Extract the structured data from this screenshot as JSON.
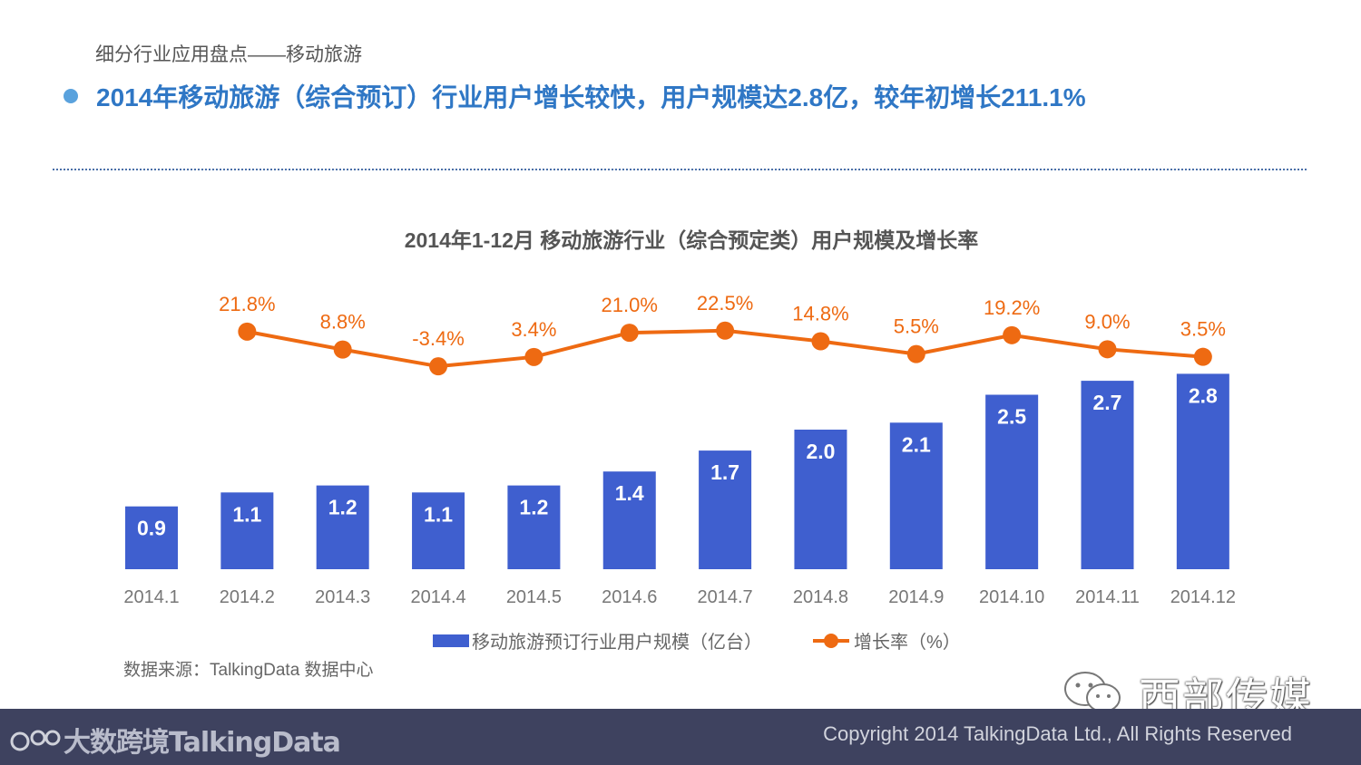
{
  "header": {
    "section_title": "细分行业应用盘点——移动旅游",
    "headline": "2014年移动旅游（综合预订）行业用户增长较快，用户规模达2.8亿，较年初增长211.1%"
  },
  "chart_data": {
    "type": "bar+line",
    "title": "2014年1-12月 移动旅游行业（综合预定类）用户规模及增长率",
    "categories": [
      "2014.1",
      "2014.2",
      "2014.3",
      "2014.4",
      "2014.5",
      "2014.6",
      "2014.7",
      "2014.8",
      "2014.9",
      "2014.10",
      "2014.11",
      "2014.12"
    ],
    "series": [
      {
        "name": "移动旅游预订行业用户规模（亿台）",
        "type": "bar",
        "color": "#3f5fcf",
        "values": [
          0.9,
          1.1,
          1.2,
          1.1,
          1.2,
          1.4,
          1.7,
          2.0,
          2.1,
          2.5,
          2.7,
          2.8
        ],
        "labels": [
          "0.9",
          "1.1",
          "1.2",
          "1.1",
          "1.2",
          "1.4",
          "1.7",
          "2.0",
          "2.1",
          "2.5",
          "2.7",
          "2.8"
        ]
      },
      {
        "name": "增长率（%）",
        "type": "line",
        "color": "#ee6a12",
        "values": [
          null,
          21.8,
          8.8,
          -3.4,
          3.4,
          21.0,
          22.5,
          14.8,
          5.5,
          19.2,
          9.0,
          3.5
        ],
        "labels": [
          "",
          "21.8%",
          "8.8%",
          "-3.4%",
          "3.4%",
          "21.0%",
          "22.5%",
          "14.8%",
          "5.5%",
          "19.2%",
          "9.0%",
          "3.5%"
        ]
      }
    ],
    "legend_position": "bottom",
    "grid": false
  },
  "source_note": "数据来源：TalkingData 数据中心",
  "watermark": {
    "text": "西部传媒",
    "icon": "wechat-icon"
  },
  "footer": {
    "brand": "TalkingData",
    "overlay_brand": "大数跨境",
    "copyright": "Copyright 2014 TalkingData Ltd., All Rights Reserved",
    "background": "#3e425f"
  }
}
